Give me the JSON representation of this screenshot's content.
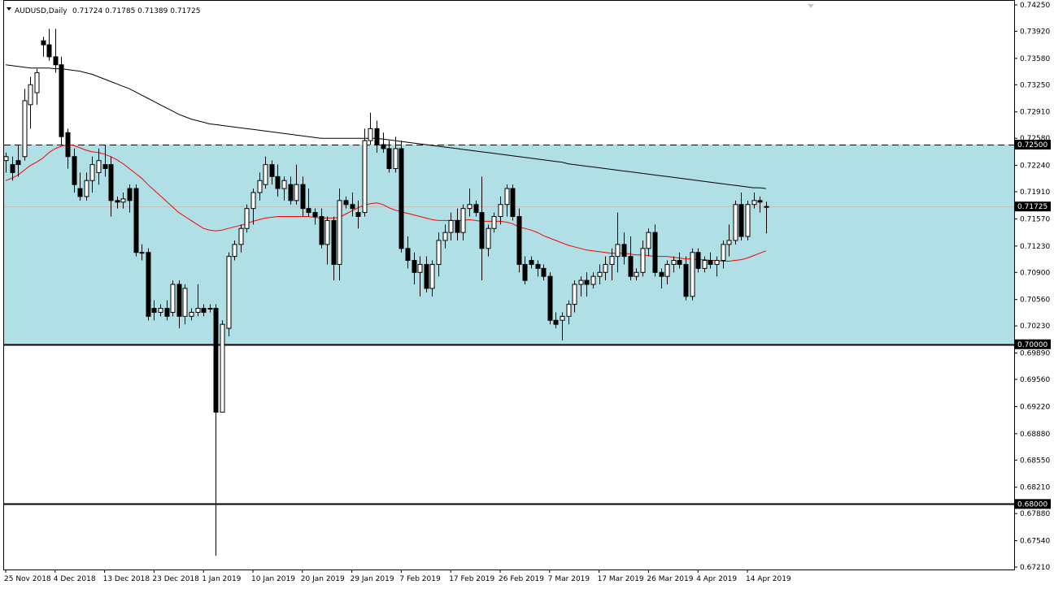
{
  "header": {
    "symbol": "AUDUSD,Daily",
    "ohlc": "0.71724 0.71785 0.71389 0.71725"
  },
  "colors": {
    "band": "#b0dfe5",
    "ma_fast": "#ff0000",
    "ma_slow": "#000000",
    "bull_body": "#ffffff",
    "bear_body": "#000000",
    "price_line": "#c0c0c0"
  },
  "chart_data": {
    "type": "candlestick",
    "title": "AUDUSD,Daily",
    "ylim": [
      0.6721,
      0.7425
    ],
    "y_ticks": [
      "0.74250",
      "0.73920",
      "0.73580",
      "0.73250",
      "0.72910",
      "0.72580",
      "0.72240",
      "0.71910",
      "0.71570",
      "0.71230",
      "0.70900",
      "0.70560",
      "0.70230",
      "0.69890",
      "0.69560",
      "0.69220",
      "0.68880",
      "0.68550",
      "0.68210",
      "0.67880",
      "0.67540",
      "0.67210"
    ],
    "x_labels": [
      "25 Nov 2018",
      "4 Dec 2018",
      "13 Dec 2018",
      "23 Dec 2018",
      "1 Jan 2019",
      "10 Jan 2019",
      "20 Jan 2019",
      "29 Jan 2019",
      "7 Feb 2019",
      "17 Feb 2019",
      "26 Feb 2019",
      "7 Mar 2019",
      "17 Mar 2019",
      "26 Mar 2019",
      "4 Apr 2019",
      "14 Apr 2019"
    ],
    "x_label_index": [
      0,
      8,
      16,
      24,
      32,
      40,
      48,
      56,
      64,
      72,
      80,
      88,
      96,
      104,
      112,
      120
    ],
    "last_price": "0.71725",
    "levels": [
      {
        "value": 0.725,
        "label": "0.72500",
        "style": "dashed"
      },
      {
        "value": 0.7,
        "label": "0.70000",
        "style": "solid"
      },
      {
        "value": 0.68,
        "label": "0.68000",
        "style": "solid"
      }
    ],
    "band": [
      0.7,
      0.725
    ],
    "candles": [
      [
        0.723,
        0.724,
        0.7215,
        0.7235
      ],
      [
        0.7225,
        0.7235,
        0.7205,
        0.7215
      ],
      [
        0.723,
        0.725,
        0.721,
        0.7225
      ],
      [
        0.7235,
        0.732,
        0.723,
        0.7305
      ],
      [
        0.73,
        0.7335,
        0.727,
        0.7325
      ],
      [
        0.7315,
        0.7345,
        0.73,
        0.734
      ],
      [
        0.738,
        0.7385,
        0.736,
        0.7375
      ],
      [
        0.7375,
        0.7395,
        0.7355,
        0.736
      ],
      [
        0.736,
        0.7395,
        0.734,
        0.735
      ],
      [
        0.735,
        0.736,
        0.725,
        0.726
      ],
      [
        0.7265,
        0.727,
        0.722,
        0.7235
      ],
      [
        0.7235,
        0.7245,
        0.719,
        0.72
      ],
      [
        0.7195,
        0.7215,
        0.718,
        0.7185
      ],
      [
        0.7185,
        0.7215,
        0.718,
        0.7205
      ],
      [
        0.7205,
        0.7235,
        0.719,
        0.7225
      ],
      [
        0.7215,
        0.7245,
        0.72,
        0.723
      ],
      [
        0.7225,
        0.725,
        0.721,
        0.722
      ],
      [
        0.7225,
        0.7235,
        0.716,
        0.718
      ],
      [
        0.718,
        0.7185,
        0.717,
        0.7178
      ],
      [
        0.7178,
        0.719,
        0.717,
        0.7182
      ],
      [
        0.7195,
        0.72,
        0.7165,
        0.718
      ],
      [
        0.7195,
        0.72,
        0.711,
        0.7115
      ],
      [
        0.7115,
        0.7125,
        0.7105,
        0.7115
      ],
      [
        0.7115,
        0.712,
        0.703,
        0.7035
      ],
      [
        0.7045,
        0.7055,
        0.703,
        0.704
      ],
      [
        0.704,
        0.705,
        0.7035,
        0.7045
      ],
      [
        0.7045,
        0.7055,
        0.703,
        0.7035
      ],
      [
        0.704,
        0.708,
        0.7035,
        0.7075
      ],
      [
        0.7075,
        0.708,
        0.702,
        0.7035
      ],
      [
        0.7035,
        0.7075,
        0.7025,
        0.707
      ],
      [
        0.7035,
        0.7045,
        0.703,
        0.704
      ],
      [
        0.704,
        0.7075,
        0.7035,
        0.7045
      ],
      [
        0.7045,
        0.705,
        0.7035,
        0.704
      ],
      [
        0.7045,
        0.705,
        0.704,
        0.7045
      ],
      [
        0.7045,
        0.705,
        0.6735,
        0.6915
      ],
      [
        0.6915,
        0.703,
        0.6915,
        0.7025
      ],
      [
        0.702,
        0.7115,
        0.701,
        0.711
      ],
      [
        0.711,
        0.713,
        0.7105,
        0.7125
      ],
      [
        0.7125,
        0.715,
        0.7115,
        0.7145
      ],
      [
        0.7145,
        0.7175,
        0.714,
        0.717
      ],
      [
        0.717,
        0.7195,
        0.715,
        0.719
      ],
      [
        0.719,
        0.7215,
        0.718,
        0.7205
      ],
      [
        0.72,
        0.7235,
        0.7195,
        0.7225
      ],
      [
        0.7225,
        0.723,
        0.72,
        0.721
      ],
      [
        0.721,
        0.7225,
        0.7185,
        0.7195
      ],
      [
        0.7195,
        0.721,
        0.718,
        0.7205
      ],
      [
        0.72,
        0.721,
        0.7175,
        0.718
      ],
      [
        0.718,
        0.7225,
        0.7175,
        0.72
      ],
      [
        0.72,
        0.721,
        0.716,
        0.717
      ],
      [
        0.717,
        0.7195,
        0.716,
        0.7165
      ],
      [
        0.7165,
        0.717,
        0.715,
        0.716
      ],
      [
        0.716,
        0.717,
        0.712,
        0.7125
      ],
      [
        0.7125,
        0.716,
        0.71,
        0.7155
      ],
      [
        0.7155,
        0.716,
        0.708,
        0.71
      ],
      [
        0.71,
        0.7195,
        0.708,
        0.718
      ],
      [
        0.718,
        0.7185,
        0.717,
        0.7175
      ],
      [
        0.7175,
        0.719,
        0.716,
        0.717
      ],
      [
        0.7165,
        0.718,
        0.7145,
        0.716
      ],
      [
        0.7165,
        0.727,
        0.716,
        0.7255
      ],
      [
        0.7255,
        0.729,
        0.725,
        0.727
      ],
      [
        0.727,
        0.728,
        0.724,
        0.725
      ],
      [
        0.725,
        0.7265,
        0.724,
        0.7245
      ],
      [
        0.7245,
        0.7255,
        0.7215,
        0.722
      ],
      [
        0.722,
        0.726,
        0.7215,
        0.7245
      ],
      [
        0.7245,
        0.7255,
        0.7115,
        0.712
      ],
      [
        0.712,
        0.7135,
        0.7095,
        0.7105
      ],
      [
        0.7105,
        0.7115,
        0.7075,
        0.709
      ],
      [
        0.709,
        0.711,
        0.706,
        0.71
      ],
      [
        0.71,
        0.711,
        0.7065,
        0.707
      ],
      [
        0.707,
        0.7105,
        0.706,
        0.71
      ],
      [
        0.71,
        0.714,
        0.7085,
        0.713
      ],
      [
        0.713,
        0.715,
        0.712,
        0.714
      ],
      [
        0.714,
        0.7165,
        0.713,
        0.7155
      ],
      [
        0.7155,
        0.717,
        0.713,
        0.714
      ],
      [
        0.714,
        0.7175,
        0.713,
        0.717
      ],
      [
        0.717,
        0.7195,
        0.716,
        0.7175
      ],
      [
        0.7175,
        0.718,
        0.716,
        0.7165
      ],
      [
        0.7165,
        0.721,
        0.708,
        0.712
      ],
      [
        0.712,
        0.715,
        0.711,
        0.7145
      ],
      [
        0.7145,
        0.7165,
        0.714,
        0.716
      ],
      [
        0.716,
        0.7185,
        0.715,
        0.7175
      ],
      [
        0.7175,
        0.72,
        0.716,
        0.7195
      ],
      [
        0.7195,
        0.72,
        0.7155,
        0.716
      ],
      [
        0.716,
        0.717,
        0.709,
        0.71
      ],
      [
        0.71,
        0.711,
        0.7075,
        0.708
      ],
      [
        0.7105,
        0.711,
        0.7095,
        0.71
      ],
      [
        0.71,
        0.7105,
        0.7085,
        0.7095
      ],
      [
        0.7095,
        0.71,
        0.708,
        0.7085
      ],
      [
        0.7085,
        0.709,
        0.7025,
        0.703
      ],
      [
        0.703,
        0.704,
        0.702,
        0.7025
      ],
      [
        0.703,
        0.704,
        0.7005,
        0.7035
      ],
      [
        0.7035,
        0.7055,
        0.7025,
        0.705
      ],
      [
        0.705,
        0.708,
        0.704,
        0.7075
      ],
      [
        0.7075,
        0.7085,
        0.706,
        0.708
      ],
      [
        0.708,
        0.709,
        0.706,
        0.7075
      ],
      [
        0.7075,
        0.709,
        0.707,
        0.7085
      ],
      [
        0.7085,
        0.71,
        0.7075,
        0.709
      ],
      [
        0.709,
        0.711,
        0.708,
        0.71
      ],
      [
        0.71,
        0.712,
        0.708,
        0.711
      ],
      [
        0.711,
        0.7165,
        0.709,
        0.7125
      ],
      [
        0.7125,
        0.714,
        0.71,
        0.711
      ],
      [
        0.711,
        0.7135,
        0.708,
        0.7085
      ],
      [
        0.7085,
        0.7095,
        0.708,
        0.709
      ],
      [
        0.709,
        0.713,
        0.7085,
        0.712
      ],
      [
        0.712,
        0.7145,
        0.711,
        0.714
      ],
      [
        0.714,
        0.715,
        0.7085,
        0.709
      ],
      [
        0.709,
        0.7095,
        0.707,
        0.7085
      ],
      [
        0.7085,
        0.7105,
        0.7075,
        0.71
      ],
      [
        0.71,
        0.711,
        0.709,
        0.7105
      ],
      [
        0.7105,
        0.7115,
        0.7095,
        0.71
      ],
      [
        0.71,
        0.711,
        0.7055,
        0.706
      ],
      [
        0.706,
        0.712,
        0.7055,
        0.7115
      ],
      [
        0.7115,
        0.712,
        0.709,
        0.7095
      ],
      [
        0.7095,
        0.711,
        0.709,
        0.7105
      ],
      [
        0.7105,
        0.7115,
        0.7095,
        0.71
      ],
      [
        0.71,
        0.711,
        0.7085,
        0.7105
      ],
      [
        0.7105,
        0.713,
        0.7095,
        0.7125
      ],
      [
        0.7125,
        0.715,
        0.711,
        0.713
      ],
      [
        0.713,
        0.718,
        0.7125,
        0.7175
      ],
      [
        0.7175,
        0.719,
        0.713,
        0.7135
      ],
      [
        0.7135,
        0.718,
        0.713,
        0.7175
      ],
      [
        0.7175,
        0.719,
        0.717,
        0.718
      ],
      [
        0.718,
        0.7185,
        0.7165,
        0.7178
      ],
      [
        0.71724,
        0.71785,
        0.71389,
        0.71725
      ]
    ],
    "series": [
      {
        "values": [
          0.7205,
          0.7208,
          0.7212,
          0.7218,
          0.7224,
          0.7228,
          0.7233,
          0.724,
          0.7245,
          0.7248,
          0.725,
          0.7249,
          0.7246,
          0.7243,
          0.7241,
          0.724,
          0.7238,
          0.7235,
          0.7231,
          0.7226,
          0.722,
          0.7214,
          0.7208,
          0.72,
          0.7193,
          0.7186,
          0.7179,
          0.7172,
          0.7165,
          0.716,
          0.7155,
          0.715,
          0.7145,
          0.7143,
          0.7142,
          0.7143,
          0.7145,
          0.7147,
          0.7149,
          0.7151,
          0.7154,
          0.7156,
          0.7158,
          0.7159,
          0.716,
          0.716,
          0.716,
          0.716,
          0.716,
          0.716,
          0.7159,
          0.7158,
          0.7158,
          0.7158,
          0.7159,
          0.7163,
          0.7167,
          0.7171,
          0.7174,
          0.7176,
          0.7177,
          0.7175,
          0.7171,
          0.7168,
          0.7166,
          0.7164,
          0.7162,
          0.716,
          0.7158,
          0.7156,
          0.7155,
          0.7155,
          0.7155,
          0.7155,
          0.7155,
          0.7156,
          0.7155,
          0.7154,
          0.7154,
          0.7154,
          0.7154,
          0.7153,
          0.7151,
          0.7147,
          0.7145,
          0.7143,
          0.714,
          0.7136,
          0.7133,
          0.713,
          0.7127,
          0.7124,
          0.7122,
          0.712,
          0.7118,
          0.7117,
          0.7116,
          0.7115,
          0.7114,
          0.7114,
          0.7114,
          0.7113,
          0.7112,
          0.7112,
          0.7111,
          0.711,
          0.711,
          0.711,
          0.7109,
          0.7108,
          0.7107,
          0.7107,
          0.7106,
          0.7106,
          0.7105,
          0.7105,
          0.7104,
          0.7104,
          0.7105,
          0.7106,
          0.7108,
          0.7111,
          0.7114,
          0.7117
        ]
      },
      {
        "values": [
          0.735,
          0.7349,
          0.7348,
          0.7347,
          0.7346,
          0.7346,
          0.7346,
          0.7346,
          0.7345,
          0.7345,
          0.7344,
          0.7343,
          0.7342,
          0.734,
          0.7338,
          0.7335,
          0.7332,
          0.7329,
          0.7326,
          0.7323,
          0.732,
          0.7316,
          0.7312,
          0.7308,
          0.7304,
          0.73,
          0.7296,
          0.7292,
          0.7288,
          0.7285,
          0.7282,
          0.728,
          0.7278,
          0.7276,
          0.7275,
          0.7274,
          0.7273,
          0.7272,
          0.7271,
          0.727,
          0.7269,
          0.7268,
          0.7267,
          0.7266,
          0.7265,
          0.7264,
          0.7263,
          0.7262,
          0.7261,
          0.726,
          0.7259,
          0.7258,
          0.7258,
          0.7258,
          0.7258,
          0.7258,
          0.7258,
          0.7258,
          0.7258,
          0.7258,
          0.7258,
          0.7257,
          0.7256,
          0.7255,
          0.7254,
          0.7253,
          0.7252,
          0.7251,
          0.725,
          0.7249,
          0.7248,
          0.7247,
          0.7246,
          0.7245,
          0.7244,
          0.7243,
          0.7242,
          0.7241,
          0.724,
          0.7239,
          0.7238,
          0.7237,
          0.7236,
          0.7235,
          0.7234,
          0.7233,
          0.7232,
          0.7231,
          0.723,
          0.7229,
          0.7228,
          0.7226,
          0.7225,
          0.7224,
          0.7223,
          0.7222,
          0.7221,
          0.722,
          0.7219,
          0.7218,
          0.7217,
          0.7216,
          0.7215,
          0.7214,
          0.7213,
          0.7212,
          0.7211,
          0.721,
          0.7209,
          0.7208,
          0.7207,
          0.7206,
          0.7205,
          0.7204,
          0.7203,
          0.7202,
          0.7201,
          0.72,
          0.7199,
          0.7198,
          0.7197,
          0.7196,
          0.7196,
          0.7195
        ]
      }
    ]
  }
}
